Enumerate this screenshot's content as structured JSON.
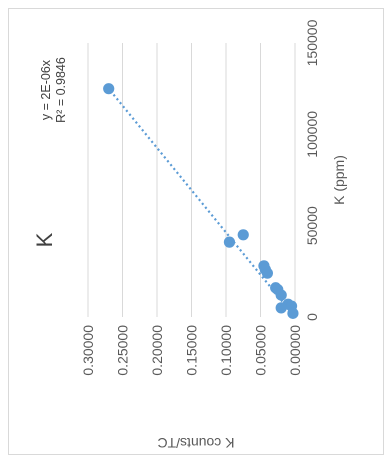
{
  "chart_data": {
    "type": "scatter",
    "title": "K",
    "xlabel": "K (ppm)",
    "ylabel": "K counts/TC",
    "xlim": [
      0,
      150000
    ],
    "ylim": [
      0,
      0.3
    ],
    "x_ticks": [
      "0",
      "50000",
      "100000",
      "150000"
    ],
    "y_ticks": [
      "0.00000",
      "0.05000",
      "0.10000",
      "0.15000",
      "0.20000",
      "0.25000",
      "0.30000"
    ],
    "grid": true,
    "rotation": "rotated 90° counter-clockwise",
    "series": [
      {
        "name": "",
        "x": [
          125000,
          45000,
          41000,
          28000,
          26000,
          24000,
          16000,
          15000,
          12000,
          7000,
          6000,
          5000,
          2000
        ],
        "y": [
          0.27,
          0.075,
          0.095,
          0.045,
          0.043,
          0.04,
          0.028,
          0.025,
          0.02,
          0.01,
          0.005,
          0.02,
          0.003
        ],
        "color": "#5B9BD5"
      }
    ],
    "trendline": {
      "type": "linear",
      "equation": "y = 2E-06x",
      "r_squared": "R² = 0.9846",
      "color": "#5B9BD5"
    }
  }
}
